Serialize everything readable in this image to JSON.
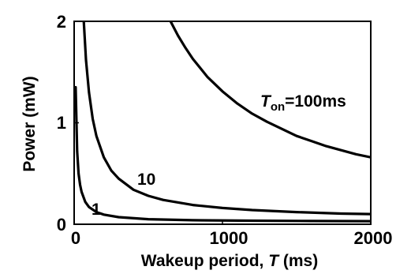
{
  "chart_data": {
    "type": "line",
    "xlabel": "Wakeup period, T (ms)",
    "xlabel_parts": {
      "pre": "Wakeup period, ",
      "italic": "T",
      "post": " (ms)"
    },
    "ylabel": "Power (mW)",
    "xlim": [
      0,
      2000
    ],
    "ylim": [
      0,
      2
    ],
    "xticks": [
      0,
      1000,
      2000
    ],
    "xtick_labels": [
      "0",
      "1000",
      "2000"
    ],
    "yticks": [
      0,
      1,
      2
    ],
    "ytick_labels": [
      "0",
      "1",
      "2"
    ],
    "grid": false,
    "series": [
      {
        "name": "1",
        "label": "1",
        "x": [
          10,
          20,
          30,
          40,
          50,
          75,
          100,
          150,
          200,
          300,
          500,
          800,
          1200,
          1600,
          2000
        ],
        "y": [
          1.35,
          0.72,
          0.5,
          0.39,
          0.32,
          0.22,
          0.17,
          0.12,
          0.095,
          0.07,
          0.05,
          0.04,
          0.035,
          0.032,
          0.03
        ]
      },
      {
        "name": "10",
        "label": "10",
        "x": [
          65,
          80,
          100,
          125,
          150,
          200,
          250,
          300,
          400,
          500,
          600,
          800,
          1000,
          1200,
          1500,
          1800,
          2000
        ],
        "y": [
          2.0,
          1.62,
          1.3,
          1.04,
          0.87,
          0.66,
          0.53,
          0.45,
          0.34,
          0.28,
          0.24,
          0.19,
          0.16,
          0.14,
          0.12,
          0.105,
          0.1
        ]
      },
      {
        "name": "Ton=100ms",
        "label_main": "T",
        "label_sub": "on",
        "label_rest": "=100ms",
        "x": [
          650,
          700,
          750,
          800,
          900,
          1000,
          1100,
          1200,
          1300,
          1400,
          1500,
          1600,
          1700,
          1800,
          1900,
          2000
        ],
        "y": [
          2.0,
          1.86,
          1.74,
          1.63,
          1.45,
          1.31,
          1.19,
          1.09,
          1.01,
          0.94,
          0.87,
          0.82,
          0.77,
          0.73,
          0.69,
          0.66
        ]
      }
    ]
  }
}
